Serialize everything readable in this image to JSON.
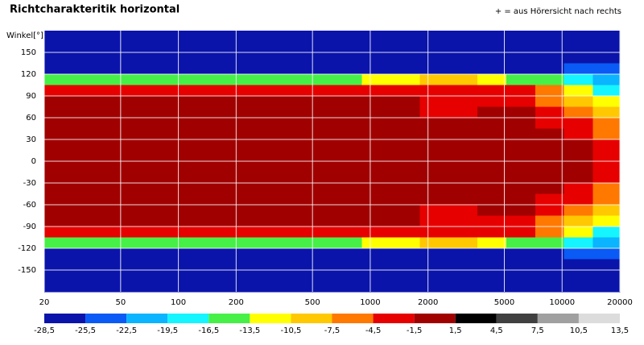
{
  "chart_data": {
    "type": "heatmap",
    "title": "Richtcharakteritik horizontal",
    "annotation": "+ = aus Hörersicht nach rechts",
    "y_label": "Winkel[°]",
    "x_edges": [
      20,
      28,
      40,
      57,
      80,
      113,
      160,
      226,
      320,
      453,
      640,
      905,
      1280,
      1810,
      2560,
      3620,
      5120,
      7240,
      10240,
      14480,
      20000
    ],
    "y_edges": [
      180,
      165,
      150,
      135,
      120,
      105,
      90,
      75,
      60,
      45,
      30,
      15,
      0,
      -15,
      -30,
      -45,
      -60,
      -75,
      -90,
      -105,
      -120,
      -135,
      -150,
      -165,
      -180
    ],
    "values": [
      [
        -28,
        -28,
        -28,
        -28,
        -28,
        -28,
        -28,
        -28,
        -28,
        -28,
        -28,
        -28,
        -28,
        -28,
        -28,
        -28,
        -28,
        -28,
        -28,
        -28
      ],
      [
        -28,
        -28,
        -28,
        -28,
        -28,
        -28,
        -28,
        -28,
        -28,
        -28,
        -28,
        -28,
        -28,
        -28,
        -28,
        -28,
        -28,
        -28,
        -28,
        -28
      ],
      [
        -28,
        -28,
        -28,
        -28,
        -28,
        -28,
        -28,
        -28,
        -28,
        -28,
        -28,
        -28,
        -28,
        -28,
        -28,
        -28,
        -28,
        -28,
        -28,
        -28
      ],
      [
        -28,
        -28,
        -28,
        -28,
        -28,
        -28,
        -28,
        -28,
        -28,
        -28,
        -28,
        -28,
        -28,
        -28,
        -28,
        -28,
        -28,
        -26,
        -25,
        -24
      ],
      [
        -14,
        -14,
        -14,
        -14,
        -14,
        -14,
        -14,
        -14,
        -14,
        -14,
        -14,
        -13,
        -12,
        -9,
        -9,
        -12,
        -14,
        -15,
        -18,
        -22
      ],
      [
        -3,
        -3,
        -3,
        -3,
        -3,
        -3,
        -3,
        -3,
        -3,
        -3,
        -3,
        -3,
        -3,
        -4,
        -4,
        -4,
        -4,
        -6,
        -11,
        -17
      ],
      [
        0,
        0,
        0,
        0,
        0,
        0,
        0,
        0,
        0,
        0,
        0,
        0,
        0,
        -3,
        -3,
        -2,
        -2,
        -5,
        -9,
        -12
      ],
      [
        0,
        0,
        0,
        0,
        0,
        0,
        0,
        0,
        0,
        0,
        0,
        0,
        0,
        -3,
        -3,
        -1,
        -1,
        -3,
        -6,
        -8
      ],
      [
        0,
        0,
        0,
        0,
        0,
        0,
        0,
        0,
        0,
        0,
        0,
        0,
        0,
        0,
        0,
        0,
        0,
        -2,
        -4,
        -6
      ],
      [
        0,
        0,
        0,
        0,
        0,
        0,
        0,
        0,
        0,
        0,
        0,
        0,
        0,
        0,
        0,
        0,
        0,
        0,
        -2,
        -5
      ],
      [
        0,
        0,
        0,
        0,
        0,
        0,
        0,
        0,
        0,
        0,
        0,
        0,
        0,
        0,
        0,
        0,
        0,
        0,
        0,
        -3
      ],
      [
        0,
        0,
        0,
        0,
        0,
        0,
        0,
        0,
        0,
        0,
        0,
        0,
        0,
        0,
        0,
        0,
        0,
        0,
        0,
        -3
      ],
      [
        0,
        0,
        0,
        0,
        0,
        0,
        0,
        0,
        0,
        0,
        0,
        0,
        0,
        0,
        0,
        0,
        0,
        0,
        0,
        -3
      ],
      [
        0,
        0,
        0,
        0,
        0,
        0,
        0,
        0,
        0,
        0,
        0,
        0,
        0,
        0,
        0,
        0,
        0,
        0,
        0,
        -3
      ],
      [
        0,
        0,
        0,
        0,
        0,
        0,
        0,
        0,
        0,
        0,
        0,
        0,
        0,
        0,
        0,
        0,
        0,
        0,
        -2,
        -5
      ],
      [
        0,
        0,
        0,
        0,
        0,
        0,
        0,
        0,
        0,
        0,
        0,
        0,
        0,
        0,
        0,
        0,
        0,
        -2,
        -4,
        -6
      ],
      [
        0,
        0,
        0,
        0,
        0,
        0,
        0,
        0,
        0,
        0,
        0,
        0,
        0,
        -3,
        -3,
        -1,
        -1,
        -3,
        -6,
        -8
      ],
      [
        0,
        0,
        0,
        0,
        0,
        0,
        0,
        0,
        0,
        0,
        0,
        0,
        0,
        -3,
        -3,
        -2,
        -2,
        -5,
        -9,
        -12
      ],
      [
        -3,
        -3,
        -3,
        -3,
        -3,
        -3,
        -3,
        -3,
        -3,
        -3,
        -3,
        -3,
        -3,
        -4,
        -4,
        -4,
        -4,
        -6,
        -11,
        -17
      ],
      [
        -14,
        -14,
        -14,
        -14,
        -14,
        -14,
        -14,
        -14,
        -14,
        -14,
        -14,
        -13,
        -12,
        -9,
        -9,
        -12,
        -14,
        -15,
        -18,
        -22
      ],
      [
        -28,
        -28,
        -28,
        -28,
        -28,
        -28,
        -28,
        -28,
        -28,
        -28,
        -28,
        -28,
        -28,
        -28,
        -28,
        -28,
        -28,
        -26,
        -25,
        -24
      ],
      [
        -28,
        -28,
        -28,
        -28,
        -28,
        -28,
        -28,
        -28,
        -28,
        -28,
        -28,
        -28,
        -28,
        -28,
        -28,
        -28,
        -28,
        -28,
        -28,
        -28
      ],
      [
        -28,
        -28,
        -28,
        -28,
        -28,
        -28,
        -28,
        -28,
        -28,
        -28,
        -28,
        -28,
        -28,
        -28,
        -28,
        -28,
        -28,
        -28,
        -28,
        -28
      ],
      [
        -28,
        -28,
        -28,
        -28,
        -28,
        -28,
        -28,
        -28,
        -28,
        -28,
        -28,
        -28,
        -28,
        -28,
        -28,
        -28,
        -28,
        -28,
        -28,
        -28
      ]
    ],
    "xlim": [
      20,
      20000
    ],
    "x_log": true,
    "xticks": [
      20,
      50,
      100,
      200,
      500,
      1000,
      2000,
      5000,
      10000,
      20000
    ],
    "ylim": [
      -180,
      180
    ],
    "yticks": [
      -150,
      -120,
      -90,
      -60,
      -30,
      0,
      30,
      60,
      90,
      120,
      150
    ],
    "grid": true,
    "colorbar": {
      "ticks": [
        {
          "value": -28.5,
          "label": "-28,5"
        },
        {
          "value": -25.5,
          "label": "-25,5"
        },
        {
          "value": -22.5,
          "label": "-22,5"
        },
        {
          "value": -19.5,
          "label": "-19,5"
        },
        {
          "value": -16.5,
          "label": "-16,5"
        },
        {
          "value": -13.5,
          "label": "-13,5"
        },
        {
          "value": -10.5,
          "label": "-10,5"
        },
        {
          "value": -7.5,
          "label": "-7,5"
        },
        {
          "value": -4.5,
          "label": "-4,5"
        },
        {
          "value": -1.5,
          "label": "-1,5"
        },
        {
          "value": 1.5,
          "label": "1,5"
        },
        {
          "value": 4.5,
          "label": "4,5"
        },
        {
          "value": 7.5,
          "label": "7,5"
        },
        {
          "value": 10.5,
          "label": "10,5"
        },
        {
          "value": 13.5,
          "label": "13,5"
        }
      ],
      "colors": [
        "#0a14aa",
        "#0a5af5",
        "#0ab4ff",
        "#14f5ff",
        "#46f046",
        "#ffff00",
        "#ffc800",
        "#ff7800",
        "#e60000",
        "#a00000",
        "#000000",
        "#404040",
        "#a0a0a0",
        "#dcdcdc"
      ]
    }
  }
}
